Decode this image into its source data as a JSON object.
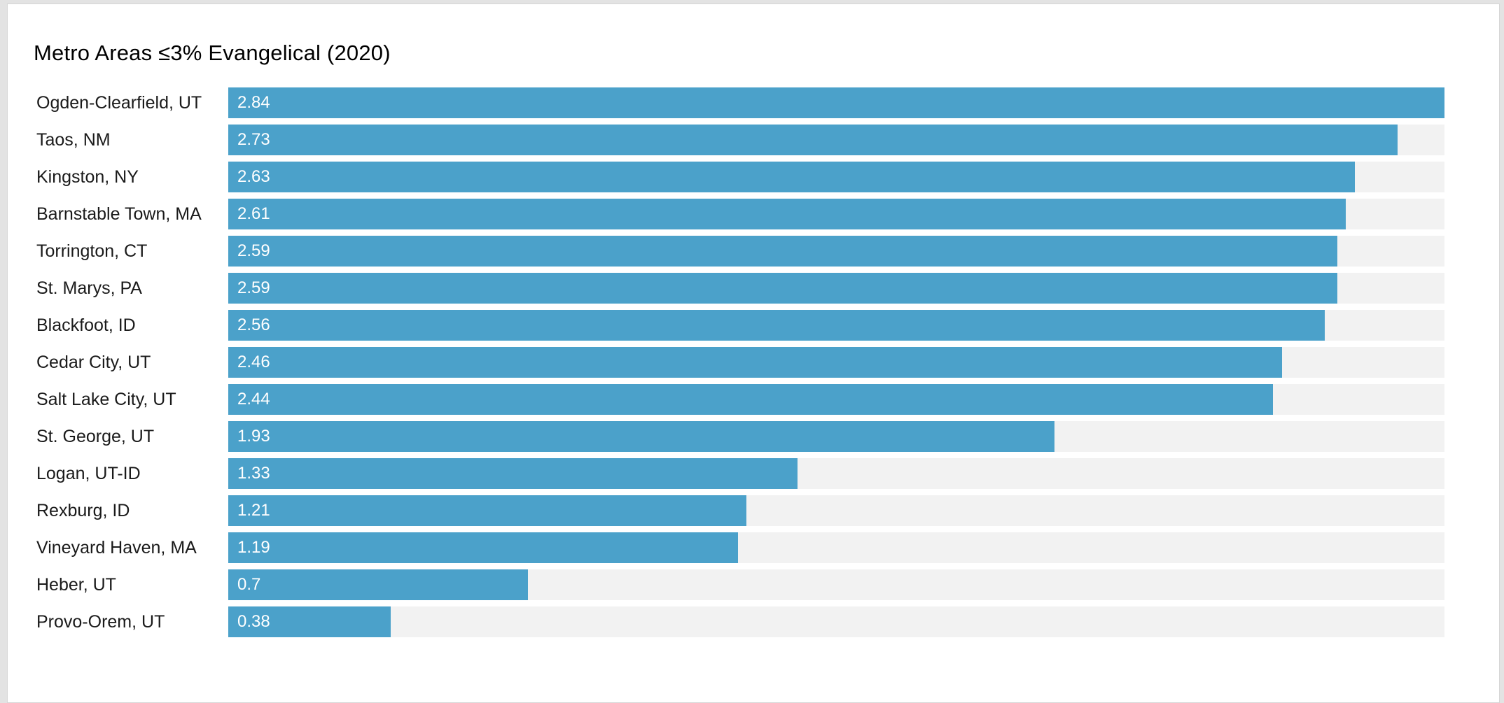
{
  "page": {
    "background_color": "#e3e3e3",
    "card_border_color": "#d6d6d6"
  },
  "chart": {
    "title": "Metro Areas ≤3% Evangelical (2020)"
  },
  "chart_data": {
    "type": "bar",
    "orientation": "horizontal",
    "title": "Metro Areas ≤3% Evangelical (2020)",
    "xlabel": "",
    "ylabel": "",
    "xlim": [
      0,
      2.84
    ],
    "grid": false,
    "legend": false,
    "bar_color": "#4ba1ca",
    "track_color": "#f2f2f2",
    "value_label_position": "inside-start",
    "categories": [
      "Ogden-Clearfield, UT",
      "Taos, NM",
      "Kingston, NY",
      "Barnstable Town, MA",
      "Torrington, CT",
      "St. Marys, PA",
      "Blackfoot, ID",
      "Cedar City, UT",
      "Salt Lake City, UT",
      "St. George, UT",
      "Logan, UT-ID",
      "Rexburg, ID",
      "Vineyard Haven, MA",
      "Heber, UT",
      "Provo-Orem, UT"
    ],
    "values": [
      2.84,
      2.73,
      2.63,
      2.61,
      2.59,
      2.59,
      2.56,
      2.46,
      2.44,
      1.93,
      1.33,
      1.21,
      1.19,
      0.7,
      0.38
    ],
    "rows": [
      {
        "label": "Ogden-Clearfield, UT",
        "value": 2.84,
        "display": "2.84"
      },
      {
        "label": "Taos, NM",
        "value": 2.73,
        "display": "2.73"
      },
      {
        "label": "Kingston, NY",
        "value": 2.63,
        "display": "2.63"
      },
      {
        "label": "Barnstable Town, MA",
        "value": 2.61,
        "display": "2.61"
      },
      {
        "label": "Torrington, CT",
        "value": 2.59,
        "display": "2.59"
      },
      {
        "label": "St. Marys, PA",
        "value": 2.59,
        "display": "2.59"
      },
      {
        "label": "Blackfoot, ID",
        "value": 2.56,
        "display": "2.56"
      },
      {
        "label": "Cedar City, UT",
        "value": 2.46,
        "display": "2.46"
      },
      {
        "label": "Salt Lake City, UT",
        "value": 2.44,
        "display": "2.44"
      },
      {
        "label": "St. George, UT",
        "value": 1.93,
        "display": "1.93"
      },
      {
        "label": "Logan, UT-ID",
        "value": 1.33,
        "display": "1.33"
      },
      {
        "label": "Rexburg, ID",
        "value": 1.21,
        "display": "1.21"
      },
      {
        "label": "Vineyard Haven, MA",
        "value": 1.19,
        "display": "1.19"
      },
      {
        "label": "Heber, UT",
        "value": 0.7,
        "display": "0.7"
      },
      {
        "label": "Provo-Orem, UT",
        "value": 0.38,
        "display": "0.38"
      }
    ]
  }
}
